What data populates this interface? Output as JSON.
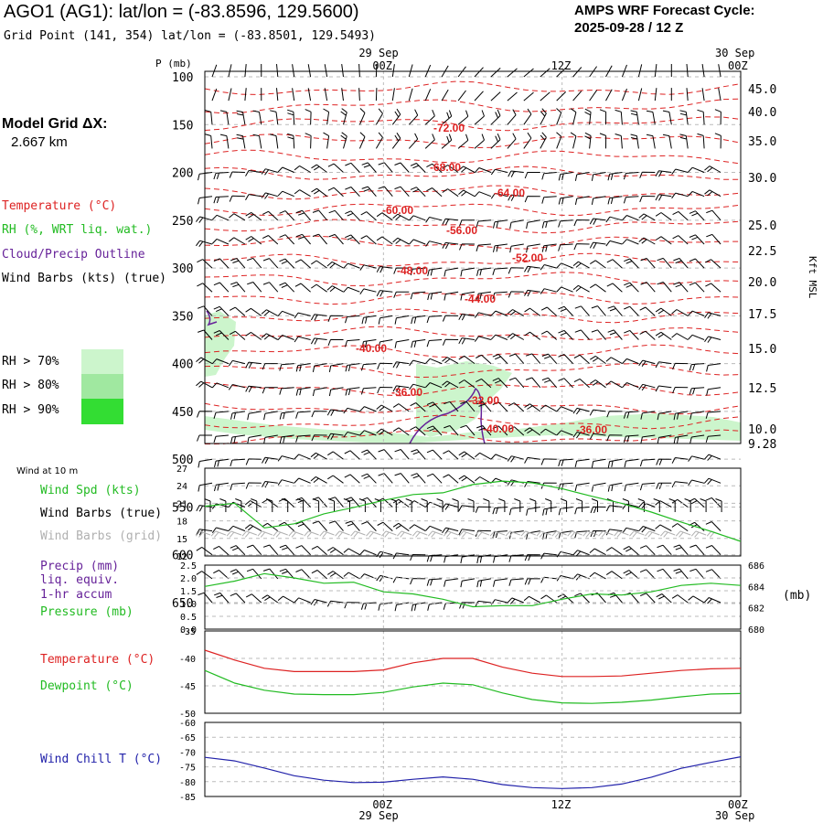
{
  "header": {
    "title": "AGO1 (AG1):  lat/lon = (-83.8596, 129.5600)",
    "subtitle": "Grid Point (141, 354) lat/lon = (-83.8501, 129.5493)",
    "cycle_line1": "AMPS WRF Forecast Cycle:",
    "cycle_line2": "2025-09-28 / 12  Z"
  },
  "sidebar": {
    "model_grid_label": "Model Grid ΔX:",
    "model_grid_value": "2.667 km",
    "legend_temperature": "Temperature (°C)",
    "legend_rh": "RH (%, WRT liq. wat.)",
    "legend_cloud": "Cloud/Precip Outline",
    "legend_wind": "Wind Barbs (kts) (true)",
    "rh_70": "RH > 70%",
    "rh_80": "RH > 80%",
    "rh_90": "RH > 90%",
    "wind_10m": "Wind at 10 m",
    "wind_spd": "Wind Spd (kts)",
    "wind_barbs_true": "Wind Barbs (true)",
    "wind_barbs_grid": "Wind Barbs (grid)",
    "precip_1": "Precip (mm)",
    "precip_2": "liq. equiv.",
    "precip_3": "1-hr accum",
    "pressure": "Pressure (mb)",
    "pressure_unit": "(mb)",
    "temperature": "Temperature (°C)",
    "dewpoint": "Dewpoint (°C)",
    "wind_chill": "Wind Chill T (°C)"
  },
  "colors": {
    "temperature": "#dd2222",
    "rh": "#22bb22",
    "cloud": "#662299",
    "wind_chill": "#2222aa",
    "rh70": "#ccf5cc",
    "rh80": "#a0e8a0",
    "rh90": "#33dd33",
    "grid_barb": "#b0b0b0"
  },
  "chart_data": [
    {
      "type": "line",
      "panel": "upper-air time-height cross section",
      "y_axis_label": "P (mb)",
      "right_axis_label": "Kft MSL",
      "x_ticks": [
        "00Z",
        "12Z",
        "00Z"
      ],
      "x_top_dates": [
        "29 Sep",
        "30 Sep"
      ],
      "pressure_ticks": [
        "100",
        "150",
        "200",
        "250",
        "300",
        "350",
        "400",
        "450",
        "500",
        "550",
        "600",
        "650"
      ],
      "height_ticks": [
        "45.0",
        "40.0",
        "35.0",
        "30.0",
        "25.0",
        "22.5",
        "20.0",
        "17.5",
        "15.0",
        "12.5",
        "10.0",
        "9.28"
      ],
      "temperature_contour_labels": [
        "-72.00",
        "-68.00",
        "-64.00",
        "-60.00",
        "-56.00",
        "-52.00",
        "-48.00",
        "-44.00",
        "-40.00",
        "-36.00",
        "-32.00",
        "-40.00",
        "-36.00"
      ]
    },
    {
      "type": "line",
      "panel": "10 m wind speed",
      "y_ticks": [
        "27",
        "24",
        "21",
        "18",
        "15",
        "12"
      ],
      "ylim": [
        12,
        27
      ],
      "series": [
        {
          "name": "Wind Spd (kts)",
          "x": [
            0,
            2,
            4,
            6,
            8,
            10,
            12,
            14,
            16,
            18,
            20,
            22,
            24,
            26,
            28,
            30,
            32,
            34,
            36
          ],
          "values": [
            20.5,
            21,
            16.8,
            17.5,
            19.2,
            20.3,
            21.5,
            22.5,
            22.8,
            24.2,
            24.8,
            24.5,
            23.5,
            22.2,
            21,
            19.5,
            17.8,
            16.2,
            14.5
          ]
        }
      ]
    },
    {
      "type": "line",
      "panel": "precip and pressure",
      "y_ticks": [
        "2.5",
        "2.0",
        "1.5",
        "1.0",
        "0.5",
        "0.0"
      ],
      "ylim": [
        0,
        2.5
      ],
      "y2_ticks": [
        "686",
        "684",
        "682",
        "680"
      ],
      "y2lim": [
        680,
        686
      ],
      "series": [
        {
          "name": "Pressure (mb)",
          "axis": "right",
          "x": [
            0,
            2,
            4,
            6,
            8,
            10,
            12,
            14,
            16,
            18,
            20,
            22,
            24,
            26,
            28,
            30,
            32,
            34,
            36
          ],
          "values": [
            684,
            684.5,
            685.2,
            684.8,
            684.3,
            684.4,
            683.5,
            683.3,
            682.8,
            682.1,
            682.2,
            682.2,
            682.8,
            683.3,
            683.2,
            683.5,
            684.1,
            684.3,
            684.1
          ]
        }
      ]
    },
    {
      "type": "line",
      "panel": "temperature and dewpoint",
      "y_ticks": [
        "-35",
        "-40",
        "-45",
        "-50"
      ],
      "ylim": [
        -50,
        -35
      ],
      "series": [
        {
          "name": "Temperature (°C)",
          "x": [
            0,
            2,
            4,
            6,
            8,
            10,
            12,
            14,
            16,
            18,
            20,
            22,
            24,
            26,
            28,
            30,
            32,
            34,
            36
          ],
          "values": [
            -38.5,
            -40.3,
            -41.8,
            -42.4,
            -42.4,
            -42.4,
            -42.1,
            -40.8,
            -40.0,
            -40.0,
            -41.6,
            -42.7,
            -43.3,
            -43.3,
            -43.2,
            -42.7,
            -42.2,
            -41.9,
            -41.8
          ]
        },
        {
          "name": "Dewpoint (°C)",
          "x": [
            0,
            2,
            4,
            6,
            8,
            10,
            12,
            14,
            16,
            18,
            20,
            22,
            24,
            26,
            28,
            30,
            32,
            34,
            36
          ],
          "values": [
            -42.2,
            -44.5,
            -45.8,
            -46.5,
            -46.6,
            -46.6,
            -46.2,
            -45.2,
            -44.5,
            -44.8,
            -46.3,
            -47.5,
            -48.1,
            -48.2,
            -48.0,
            -47.6,
            -47.0,
            -46.5,
            -46.4
          ]
        }
      ]
    },
    {
      "type": "line",
      "panel": "wind chill",
      "y_ticks": [
        "-60",
        "-65",
        "-70",
        "-75",
        "-80",
        "-85"
      ],
      "ylim": [
        -85,
        -60
      ],
      "x_ticks": [
        "00Z",
        "12Z",
        "00Z"
      ],
      "x_bottom_dates": [
        "29 Sep",
        "30 Sep"
      ],
      "series": [
        {
          "name": "Wind Chill T (°C)",
          "x": [
            0,
            2,
            4,
            6,
            8,
            10,
            12,
            14,
            16,
            18,
            20,
            22,
            24,
            26,
            28,
            30,
            32,
            34,
            36
          ],
          "values": [
            -71.8,
            -73,
            -75.4,
            -78,
            -79.5,
            -80.3,
            -80.2,
            -79.2,
            -78.4,
            -79.2,
            -81,
            -82,
            -82.3,
            -82,
            -80.8,
            -78.5,
            -75.5,
            -73.5,
            -71.6
          ]
        }
      ]
    }
  ]
}
